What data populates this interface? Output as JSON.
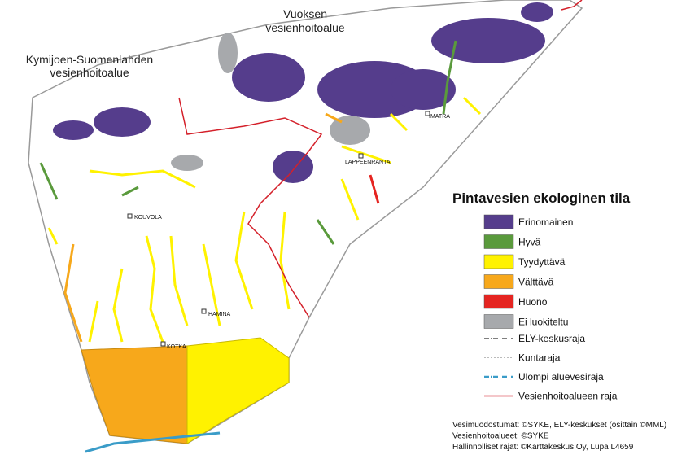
{
  "regions": [
    {
      "lines": [
        "Kymijoen-Suomenlahden",
        "vesienhoitoalue"
      ]
    },
    {
      "lines": [
        "Vuoksen",
        "vesienhoitoalue"
      ]
    }
  ],
  "cities": [
    "KOUVOLA",
    "LAPPEENRANTA",
    "IMATRA",
    "HAMINA",
    "KOTKA"
  ],
  "legend": {
    "title": "Pintavesien ekologinen tila",
    "items": [
      {
        "label": "Erinomainen",
        "color": "#553d8c"
      },
      {
        "label": "Hyvä",
        "color": "#5a9a3c"
      },
      {
        "label": "Tyydyttävä",
        "color": "#fff200"
      },
      {
        "label": "Välttävä",
        "color": "#f7a81b"
      },
      {
        "label": "Huono",
        "color": "#e52521"
      },
      {
        "label": "Ei luokiteltu",
        "color": "#a7a9ac"
      }
    ],
    "lines": [
      {
        "label": "ELY-keskusraja",
        "color": "#333333"
      },
      {
        "label": "Kuntaraja",
        "color": "#bbbbbb"
      },
      {
        "label": "Ulompi aluevesiraja",
        "color": "#3a9cc8"
      },
      {
        "label": "Vesienhoitoalueen raja",
        "color": "#d4202a"
      }
    ]
  },
  "credits": [
    "Vesimuodostumat: ©SYKE, ELY-keskukset (osittain ©MML)",
    "Vesienhoitoalueet: ©SYKE",
    "Hallinnolliset rajat: ©Karttakeskus Oy, Lupa L4659"
  ]
}
